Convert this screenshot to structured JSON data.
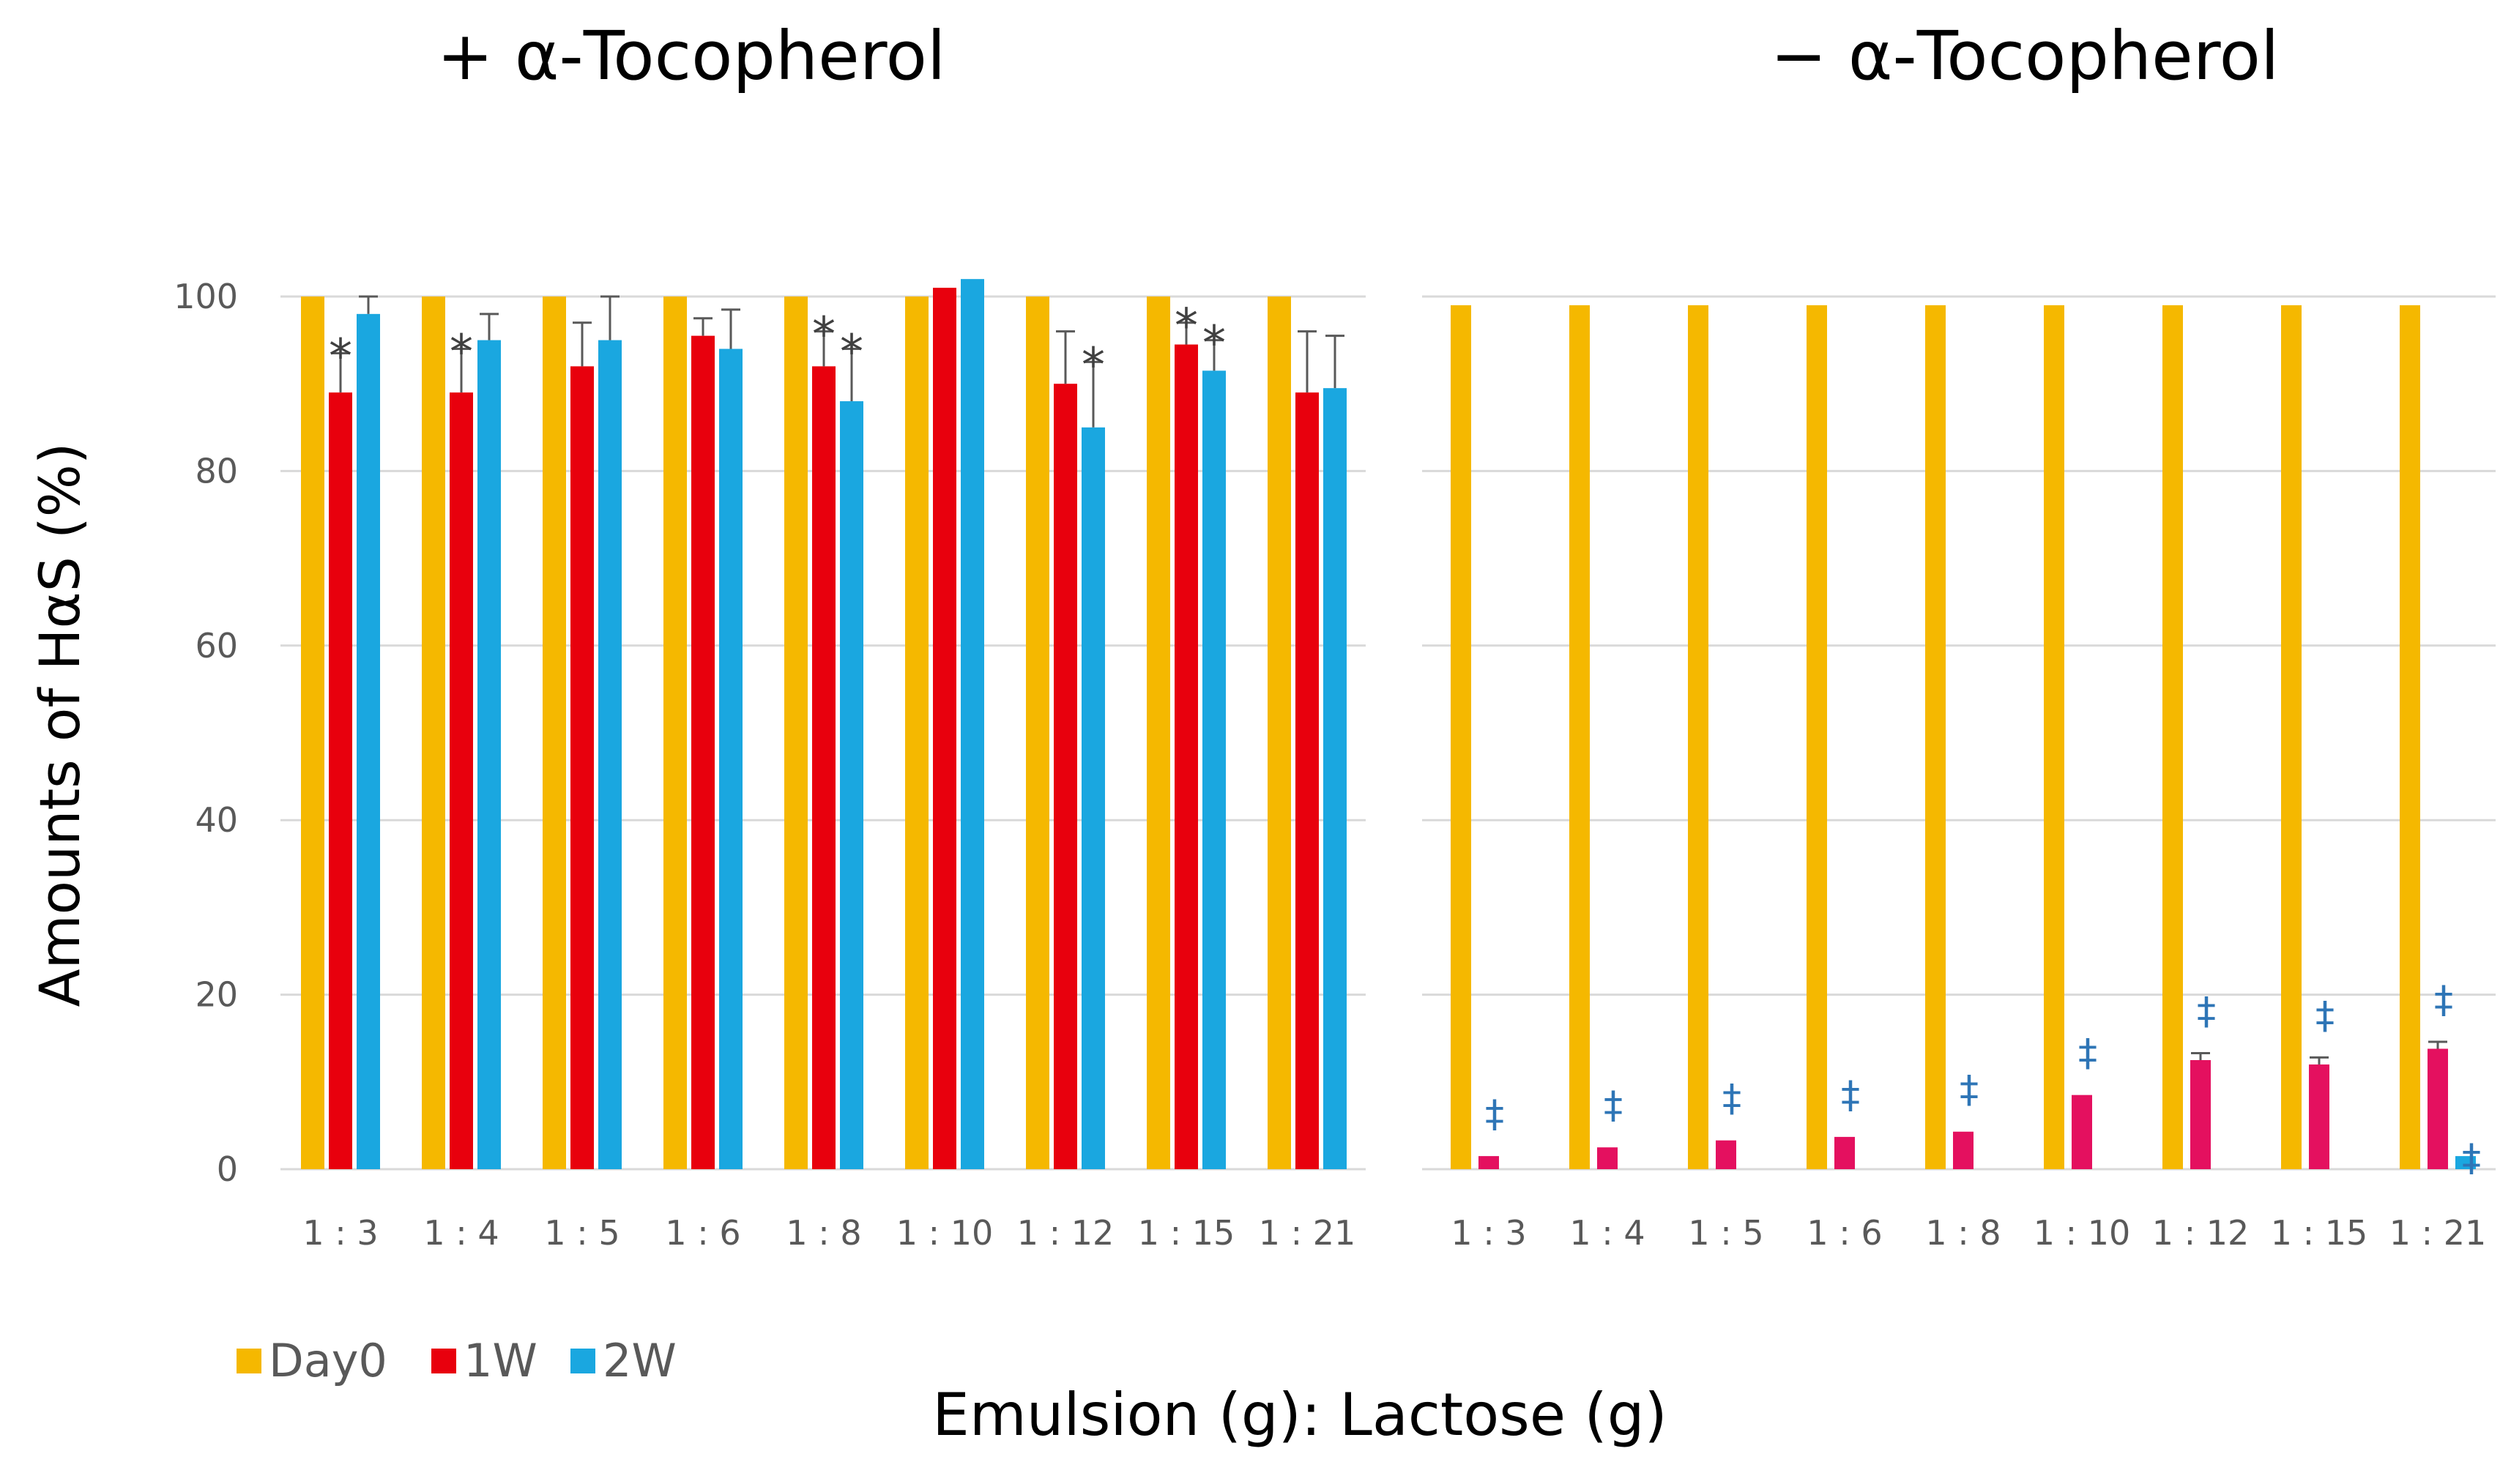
{
  "chart_data": [
    {
      "type": "bar",
      "title": "+ α-Tocopherol",
      "ylabel": "Amounts of HαS (%)",
      "xlabel": "Emulsion (g): Lactose (g)",
      "ylim": [
        0,
        100
      ],
      "yticks": [
        0,
        20,
        40,
        60,
        80,
        100
      ],
      "grid": true,
      "categories": [
        "1 : 3",
        "1 : 4",
        "1 : 5",
        "1 : 6",
        "1 : 8",
        "1 : 10",
        "1 : 12",
        "1 : 15",
        "1 : 21"
      ],
      "series": [
        {
          "name": "Day0",
          "color": "#F5B800",
          "values": [
            100,
            100,
            100,
            100,
            100,
            100,
            100,
            100,
            100
          ],
          "errors": [
            0,
            0,
            0,
            0,
            0,
            0,
            0,
            0,
            0
          ]
        },
        {
          "name": "1W",
          "color": "#E8000D",
          "values": [
            89,
            89,
            92,
            95.5,
            92,
            101,
            90,
            94.5,
            89
          ],
          "errors": [
            4.5,
            5,
            5,
            2,
            4,
            0,
            6,
            2.5,
            7
          ]
        },
        {
          "name": "2W",
          "color": "#1AA7E0",
          "values": [
            98,
            95,
            95,
            94,
            88,
            102,
            85,
            91.5,
            89.5
          ],
          "errors": [
            2,
            3,
            5,
            4.5,
            6,
            0,
            7.5,
            3.5,
            6
          ]
        }
      ],
      "annotations": [
        {
          "text": "*",
          "category": "1 : 3",
          "series": "1W"
        },
        {
          "text": "*",
          "category": "1 : 4",
          "series": "1W"
        },
        {
          "text": "*",
          "category": "1 : 8",
          "series": "1W"
        },
        {
          "text": "*",
          "category": "1 : 8",
          "series": "2W"
        },
        {
          "text": "*",
          "category": "1 : 12",
          "series": "2W"
        },
        {
          "text": "*",
          "category": "1 : 15",
          "series": "1W"
        },
        {
          "text": "*",
          "category": "1 : 15",
          "series": "2W"
        }
      ]
    },
    {
      "type": "bar",
      "title": "− α-Tocopherol",
      "ylim": [
        0,
        100
      ],
      "grid": true,
      "categories": [
        "1 : 3",
        "1 : 4",
        "1 : 5",
        "1 : 6",
        "1 : 8",
        "1 : 10",
        "1 : 12",
        "1 : 15",
        "1 : 21"
      ],
      "series": [
        {
          "name": "Day0",
          "color": "#F5B800",
          "values": [
            99,
            99,
            99,
            99,
            99,
            99,
            99,
            99,
            99
          ],
          "errors": [
            0,
            0,
            0,
            0,
            0,
            0,
            0,
            0,
            0
          ]
        },
        {
          "name": "1W",
          "color": "#E4105F",
          "values": [
            1.5,
            2.5,
            3.3,
            3.7,
            4.3,
            8.5,
            12.5,
            12,
            13.8
          ],
          "errors": [
            0,
            0,
            0,
            0,
            0,
            0,
            0.8,
            0.8,
            0.8
          ]
        },
        {
          "name": "2W",
          "color": "#1AA7E0",
          "values": [
            0,
            0,
            0,
            0,
            0,
            0,
            0,
            0,
            1.5
          ],
          "errors": [
            0,
            0,
            0,
            0,
            0,
            0,
            0,
            0,
            0
          ]
        }
      ],
      "annotations": [
        {
          "text": "‡",
          "category": "1 : 3",
          "series": "1W"
        },
        {
          "text": "‡",
          "category": "1 : 4",
          "series": "1W"
        },
        {
          "text": "‡",
          "category": "1 : 5",
          "series": "1W"
        },
        {
          "text": "‡",
          "category": "1 : 6",
          "series": "1W"
        },
        {
          "text": "‡",
          "category": "1 : 8",
          "series": "1W"
        },
        {
          "text": "‡",
          "category": "1 : 10",
          "series": "1W"
        },
        {
          "text": "‡",
          "category": "1 : 12",
          "series": "1W"
        },
        {
          "text": "‡",
          "category": "1 : 15",
          "series": "1W"
        },
        {
          "text": "‡",
          "category": "1 : 21",
          "series": "1W"
        },
        {
          "text": "‡",
          "category": "1 : 21",
          "series": "2W"
        }
      ]
    }
  ],
  "legend": {
    "position": "bottom-left",
    "items": [
      {
        "label": "Day0",
        "color": "#F5B800"
      },
      {
        "label": "1W",
        "color": "#E8000D"
      },
      {
        "label": "2W",
        "color": "#1AA7E0"
      }
    ]
  },
  "colors": {
    "grid": "#D9D9D9",
    "axis_text": "#595959",
    "title": "#000000",
    "error_bar": "#595959",
    "annotation_star": "#404040",
    "annotation_dagger": "#2E75B6"
  }
}
